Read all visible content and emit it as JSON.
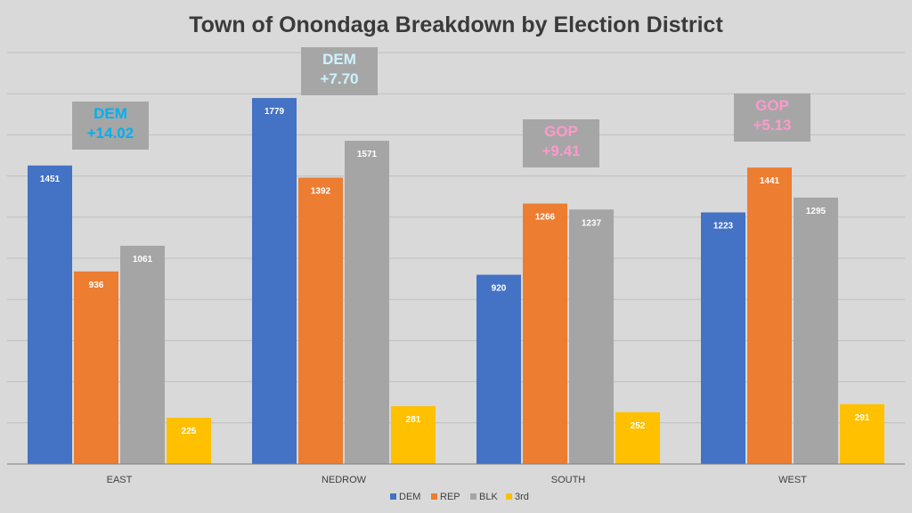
{
  "chart_data": {
    "type": "bar",
    "title": "Town of Onondaga Breakdown by Election District",
    "categories": [
      "EAST",
      "NEDROW",
      "SOUTH",
      "WEST"
    ],
    "series": [
      {
        "name": "DEM",
        "color": "#4472c4",
        "values": [
          1451,
          1779,
          920,
          1223
        ]
      },
      {
        "name": "REP",
        "color": "#ed7d31",
        "values": [
          936,
          1392,
          1266,
          1441
        ]
      },
      {
        "name": "BLK",
        "color": "#a5a5a5",
        "values": [
          1061,
          1571,
          1237,
          1295
        ]
      },
      {
        "name": "3rd",
        "color": "#ffc000",
        "values": [
          225,
          281,
          252,
          291
        ]
      }
    ],
    "ylim": [
      0,
      2000
    ],
    "grid": true,
    "legend": "bottom",
    "annotations": [
      {
        "category": "EAST",
        "party": "DEM",
        "margin": "+14.02",
        "color": "#00b0f0"
      },
      {
        "category": "NEDROW",
        "party": "DEM",
        "margin": "+7.70",
        "color": "#cdf3ff"
      },
      {
        "category": "SOUTH",
        "party": "GOP",
        "margin": "+9.41",
        "color": "#ff99cc"
      },
      {
        "category": "WEST",
        "party": "GOP",
        "margin": "+5.13",
        "color": "#ff99cc"
      }
    ]
  }
}
